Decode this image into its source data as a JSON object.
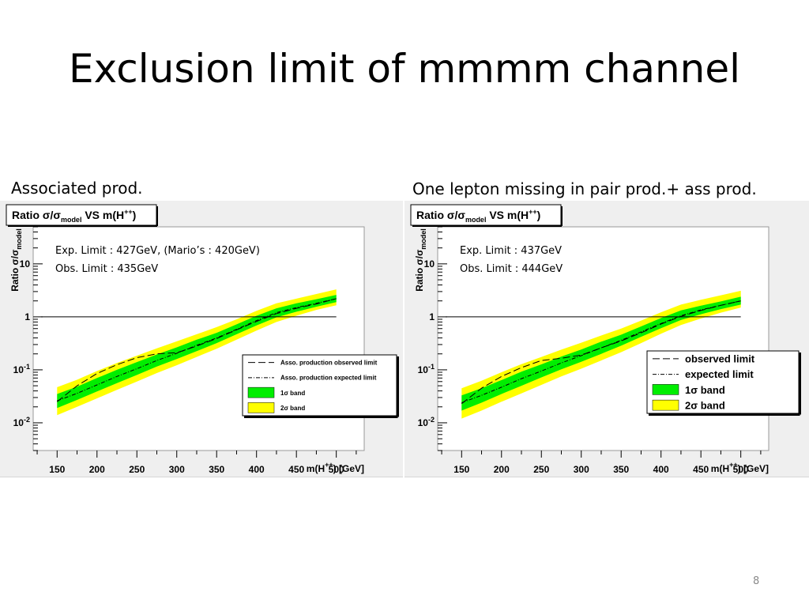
{
  "slide": {
    "title": "Exclusion limit of mmmm channel",
    "page_number": "8"
  },
  "chart_data": [
    {
      "type": "line",
      "caption": "Associated prod.",
      "title": "Ratio σ/σmodel VS m(H++)",
      "title_parts": {
        "main": "Ratio σ/σ",
        "sub": "model",
        "tail": " VS m(H",
        "sup": "++",
        "end": ")"
      },
      "ylabel_parts": {
        "main": "Ratio σ/σ",
        "sub": "model"
      },
      "xlabel": "m(H++) [GeV]",
      "xlabel_parts": {
        "main": "m(H",
        "sup": "++",
        "end": ") [GeV]"
      },
      "xlim": [
        120,
        535
      ],
      "ylim": [
        0.003,
        50
      ],
      "yscale": "log",
      "xticks": [
        150,
        200,
        250,
        300,
        350,
        400,
        450,
        500
      ],
      "yticks": [
        {
          "value": 10,
          "base": "10",
          "exp": ""
        },
        {
          "value": 1,
          "base": "1",
          "exp": ""
        },
        {
          "value": 0.1,
          "base": "10",
          "exp": "-1"
        },
        {
          "value": 0.01,
          "base": "10",
          "exp": "-2"
        }
      ],
      "annotations": [
        "Exp. Limit : 427GeV, (Mario’s : 420GeV)",
        "Obs. Limit : 435GeV"
      ],
      "legend": {
        "placement": "right",
        "large_font": false,
        "entries": [
          "Asso. production observed limit",
          "Asso. production expected limit",
          "1σ band",
          "2σ band"
        ]
      },
      "colors": {
        "band_1sigma": "#00ee00",
        "band_2sigma": "#ffff00"
      },
      "x": [
        150,
        175,
        200,
        225,
        250,
        275,
        300,
        325,
        350,
        375,
        400,
        425,
        450,
        475,
        500
      ],
      "series": [
        {
          "name": "Asso. production expected limit",
          "values": [
            0.026,
            0.036,
            0.052,
            0.075,
            0.105,
            0.15,
            0.205,
            0.29,
            0.4,
            0.58,
            0.85,
            1.2,
            1.5,
            1.8,
            2.2
          ]
        },
        {
          "name": "Asso. production observed limit",
          "values": [
            0.025,
            0.05,
            0.085,
            0.125,
            0.17,
            0.2,
            0.21,
            0.28,
            0.39,
            0.57,
            0.82,
            1.15,
            1.45,
            1.75,
            2.2
          ]
        },
        {
          "name": "1σ band",
          "role": "band",
          "low": [
            0.019,
            0.027,
            0.039,
            0.056,
            0.08,
            0.115,
            0.16,
            0.225,
            0.32,
            0.47,
            0.69,
            0.98,
            1.25,
            1.55,
            1.9
          ],
          "high": [
            0.035,
            0.048,
            0.07,
            0.1,
            0.14,
            0.195,
            0.265,
            0.37,
            0.5,
            0.72,
            1.05,
            1.45,
            1.8,
            2.15,
            2.6
          ]
        },
        {
          "name": "2σ band",
          "role": "band",
          "low": [
            0.014,
            0.02,
            0.029,
            0.042,
            0.06,
            0.087,
            0.122,
            0.175,
            0.25,
            0.37,
            0.55,
            0.8,
            1.05,
            1.35,
            1.65
          ],
          "high": [
            0.047,
            0.065,
            0.095,
            0.135,
            0.185,
            0.255,
            0.345,
            0.47,
            0.64,
            0.9,
            1.3,
            1.8,
            2.2,
            2.7,
            3.3
          ]
        },
        {
          "name": "reference",
          "role": "hline",
          "value": 1,
          "x_range": [
            130,
            500
          ]
        }
      ]
    },
    {
      "type": "line",
      "caption": "One lepton missing in pair prod.+ ass prod.",
      "title": "Ratio σ/σmodel VS m(H++)",
      "title_parts": {
        "main": "Ratio σ/σ",
        "sub": "model",
        "tail": " VS m(H",
        "sup": "++",
        "end": ")"
      },
      "ylabel_parts": {
        "main": "Ratio σ/σ",
        "sub": "model"
      },
      "xlabel": "m(H++) [GeV]",
      "xlabel_parts": {
        "main": "m(H",
        "sup": "++",
        "end": ") [GeV]"
      },
      "xlim": [
        120,
        535
      ],
      "ylim": [
        0.003,
        50
      ],
      "yscale": "log",
      "xticks": [
        150,
        200,
        250,
        300,
        350,
        400,
        450,
        500
      ],
      "yticks": [
        {
          "value": 10,
          "base": "10",
          "exp": ""
        },
        {
          "value": 1,
          "base": "1",
          "exp": ""
        },
        {
          "value": 0.1,
          "base": "10",
          "exp": "-1"
        },
        {
          "value": 0.01,
          "base": "10",
          "exp": "-2"
        }
      ],
      "annotations": [
        "Exp. Limit : 437GeV",
        "Obs. Limit : 444GeV"
      ],
      "legend": {
        "placement": "right",
        "large_font": true,
        "entries": [
          "observed limit",
          "expected limit",
          "1σ band",
          "2σ band"
        ]
      },
      "colors": {
        "band_1sigma": "#00ee00",
        "band_2sigma": "#ffff00"
      },
      "x": [
        150,
        175,
        200,
        225,
        250,
        275,
        300,
        325,
        350,
        375,
        400,
        425,
        450,
        475,
        500
      ],
      "series": [
        {
          "name": "expected limit",
          "values": [
            0.024,
            0.033,
            0.047,
            0.068,
            0.095,
            0.135,
            0.185,
            0.26,
            0.36,
            0.52,
            0.75,
            1.05,
            1.35,
            1.65,
            2.0
          ]
        },
        {
          "name": "observed limit",
          "values": [
            0.023,
            0.045,
            0.075,
            0.11,
            0.15,
            0.165,
            0.19,
            0.26,
            0.35,
            0.5,
            0.73,
            1.02,
            1.32,
            1.65,
            2.0
          ]
        },
        {
          "name": "1σ band",
          "role": "band",
          "low": [
            0.017,
            0.024,
            0.035,
            0.05,
            0.072,
            0.102,
            0.142,
            0.2,
            0.285,
            0.42,
            0.61,
            0.87,
            1.12,
            1.4,
            1.7
          ],
          "high": [
            0.033,
            0.045,
            0.064,
            0.092,
            0.127,
            0.178,
            0.242,
            0.34,
            0.46,
            0.66,
            0.95,
            1.32,
            1.62,
            1.95,
            2.4
          ]
        },
        {
          "name": "2σ band",
          "role": "band",
          "low": [
            0.012,
            0.017,
            0.025,
            0.036,
            0.052,
            0.075,
            0.105,
            0.15,
            0.215,
            0.32,
            0.48,
            0.7,
            0.93,
            1.2,
            1.5
          ],
          "high": [
            0.045,
            0.062,
            0.09,
            0.128,
            0.175,
            0.24,
            0.325,
            0.445,
            0.6,
            0.85,
            1.22,
            1.7,
            2.1,
            2.55,
            3.1
          ]
        },
        {
          "name": "reference",
          "role": "hline",
          "value": 1,
          "x_range": [
            130,
            500
          ]
        }
      ]
    }
  ]
}
